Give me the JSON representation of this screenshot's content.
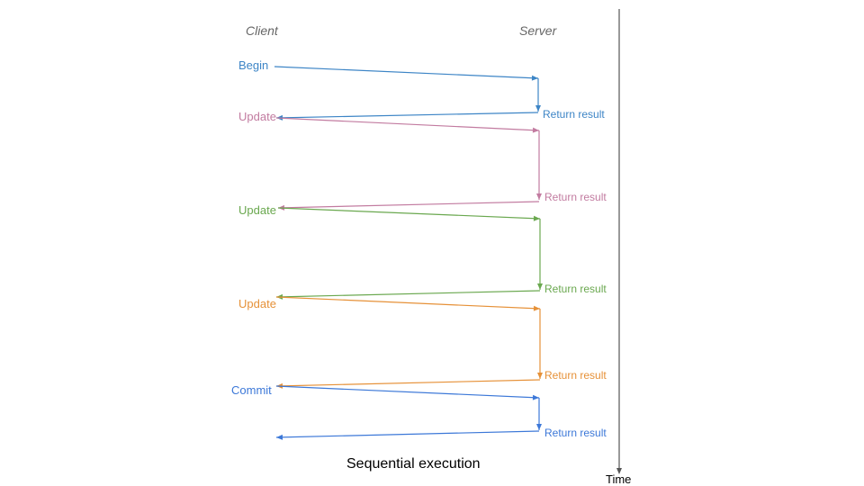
{
  "headers": {
    "client": "Client",
    "server": "Server"
  },
  "caption": "Sequential execution",
  "time_axis_label": "Time",
  "colors": {
    "axis": "#555555",
    "caption": "#000000"
  },
  "exchanges": [
    {
      "request": "Begin",
      "response": "Return result",
      "color": "#3d85c6"
    },
    {
      "request": "Update",
      "response": "Return result",
      "color": "#c27ba0"
    },
    {
      "request": "Update",
      "response": "Return result",
      "color": "#6aa84f"
    },
    {
      "request": "Update",
      "response": "Return result",
      "color": "#e69138"
    },
    {
      "request": "Commit",
      "response": "Return result",
      "color": "#3c78d8"
    }
  ]
}
